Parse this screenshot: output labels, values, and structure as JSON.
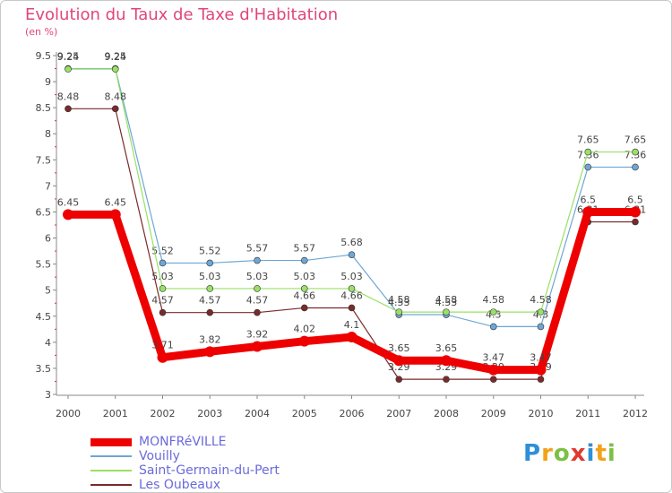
{
  "chart_data": {
    "type": "line",
    "title": "Evolution du Taux de Taxe d'Habitation",
    "subtitle": "(en %)",
    "categories": [
      "2000",
      "2001",
      "2002",
      "2003",
      "2004",
      "2005",
      "2006",
      "2007",
      "2008",
      "2009",
      "2010",
      "2011",
      "2012"
    ],
    "ylim": [
      3,
      9.5
    ],
    "yticks": [
      "3",
      "3.5",
      "4",
      "4.5",
      "5",
      "5.5",
      "6",
      "6.5",
      "7",
      "7.5",
      "8",
      "8.5",
      "9",
      "9.5"
    ],
    "series": [
      {
        "name": "Vouilly",
        "color": "#6fa6d6",
        "values": [
          9.25,
          9.25,
          5.52,
          5.52,
          5.57,
          5.57,
          5.68,
          4.53,
          4.53,
          4.3,
          4.3,
          7.36,
          7.36
        ],
        "labels": [
          "9.25",
          "9.25",
          "5.52",
          "5.52",
          "5.57",
          "5.57",
          "5.68",
          "4.53",
          "4.53",
          "4.3",
          "4.3",
          "7.36",
          "7.36"
        ]
      },
      {
        "name": "Saint-Germain-du-Pert",
        "color": "#99e066",
        "values": [
          9.24,
          9.24,
          5.03,
          5.03,
          5.03,
          5.03,
          5.03,
          4.58,
          4.58,
          4.58,
          4.58,
          7.65,
          7.65
        ],
        "labels": [
          "9.24",
          "9.24",
          "5.03",
          "5.03",
          "5.03",
          "5.03",
          "5.03",
          "4.58",
          "4.58",
          "4.58",
          "4.58",
          "7.65",
          "7.65"
        ]
      },
      {
        "name": "Les Oubeaux",
        "color": "#7a2a2a",
        "values": [
          8.48,
          8.48,
          4.57,
          4.57,
          4.57,
          4.66,
          4.66,
          3.29,
          3.29,
          3.29,
          3.29,
          6.31,
          6.31
        ],
        "labels": [
          "8.48",
          "8.48",
          "4.57",
          "4.57",
          "4.57",
          "4.66",
          "4.66",
          "3.29",
          "3.29",
          "3.29",
          "3.29",
          "6.31",
          "6.31"
        ]
      },
      {
        "name": "MONFRéVILLE",
        "color": "#ee0000",
        "values": [
          6.45,
          6.45,
          3.71,
          3.82,
          3.92,
          4.02,
          4.1,
          3.65,
          3.65,
          3.47,
          3.47,
          6.5,
          6.5
        ],
        "labels": [
          "6.45",
          "6.45",
          "3.71",
          "3.82",
          "3.92",
          "4.02",
          "4.1",
          "3.65",
          "3.65",
          "3.47",
          "3.47",
          "6.5",
          "6.5"
        ]
      }
    ],
    "legend": [
      "MONFRéVILLE",
      "Vouilly",
      "Saint-Germain-du-Pert",
      "Les Oubeaux"
    ],
    "grid": false
  },
  "logo": {
    "text": "Proxiti",
    "letters": [
      "P",
      "r",
      "o",
      "x",
      "i",
      "t",
      "i"
    ]
  }
}
